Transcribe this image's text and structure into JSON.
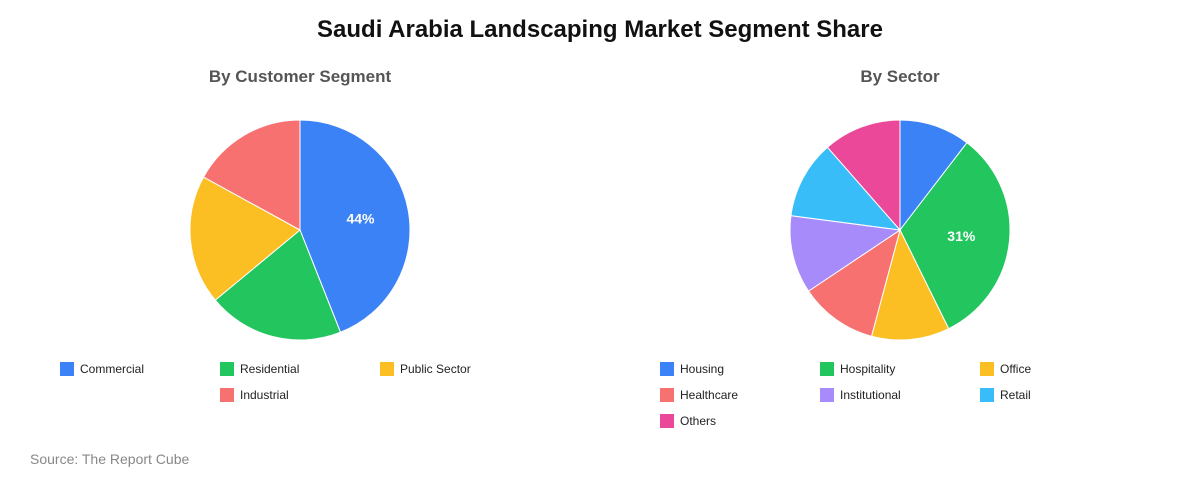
{
  "title": "Saudi Arabia Landscaping Market Segment Share",
  "source": "Source: The Report Cube",
  "chart_data": [
    {
      "type": "pie",
      "title": "By Customer Segment",
      "categories": [
        "Commercial",
        "Residential",
        "Public Sector",
        "Industrial"
      ],
      "values": [
        44,
        20,
        19,
        17
      ],
      "colors": [
        "#3b82f6",
        "#22c55e",
        "#fbbf24",
        "#f87171"
      ],
      "data_labels": [
        "44%",
        "",
        "",
        ""
      ],
      "legend_position": "bottom"
    },
    {
      "type": "pie",
      "title": "By Sector",
      "categories": [
        "Housing",
        "Hospitality",
        "Office",
        "Healthcare",
        "Institutional",
        "Retail",
        "Others"
      ],
      "values": [
        10,
        31,
        11,
        11,
        11,
        11,
        11
      ],
      "colors": [
        "#3b82f6",
        "#22c55e",
        "#fbbf24",
        "#f87171",
        "#a78bfa",
        "#38bdf8",
        "#ec4899"
      ],
      "data_labels": [
        "",
        "31%",
        "",
        "",
        "",
        "",
        ""
      ],
      "legend_position": "bottom"
    }
  ]
}
